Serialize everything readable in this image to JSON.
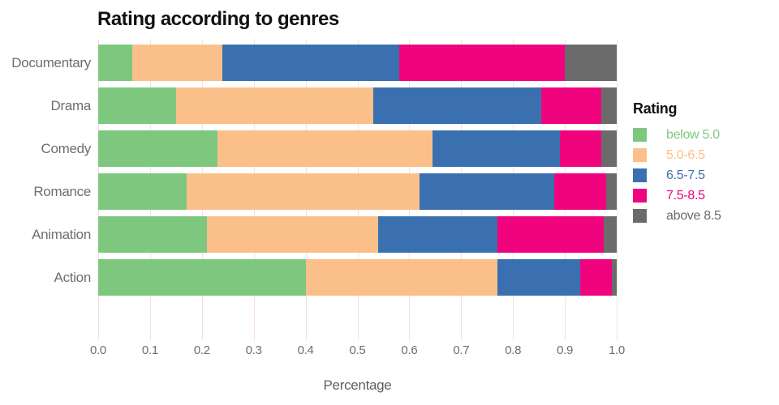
{
  "title": "Rating according to genres",
  "xlabel": "Percentage",
  "legend": {
    "title": "Rating",
    "entries": [
      {
        "label": "below 5.0",
        "color": "#7DC87E"
      },
      {
        "label": "5.0-6.5",
        "color": "#FBC08A"
      },
      {
        "label": "6.5-7.5",
        "color": "#3B70B0"
      },
      {
        "label": "7.5-8.5",
        "color": "#F0047E"
      },
      {
        "label": "above 8.5",
        "color": "#6B6B6B"
      }
    ]
  },
  "chart_data": {
    "type": "bar",
    "orientation": "horizontal",
    "stacked": true,
    "title": "Rating according to genres",
    "xlabel": "Percentage",
    "ylabel": "",
    "xlim": [
      0.0,
      1.0
    ],
    "xticks": [
      "0.0",
      "0.1",
      "0.2",
      "0.3",
      "0.4",
      "0.5",
      "0.6",
      "0.7",
      "0.8",
      "0.9",
      "1.0"
    ],
    "grid": true,
    "gridline_color": "#F6DFDF",
    "legend_position": "right",
    "legend_title": "Rating",
    "categories": [
      "Documentary",
      "Drama",
      "Comedy",
      "Romance",
      "Animation",
      "Action"
    ],
    "series": [
      {
        "name": "below 5.0",
        "color": "#7DC87E",
        "values": [
          0.065,
          0.15,
          0.23,
          0.17,
          0.21,
          0.4
        ]
      },
      {
        "name": "5.0-6.5",
        "color": "#FBC08A",
        "values": [
          0.175,
          0.38,
          0.415,
          0.45,
          0.33,
          0.37
        ]
      },
      {
        "name": "6.5-7.5",
        "color": "#3B70B0",
        "values": [
          0.34,
          0.325,
          0.245,
          0.26,
          0.23,
          0.16
        ]
      },
      {
        "name": "7.5-8.5",
        "color": "#F0047E",
        "values": [
          0.32,
          0.115,
          0.08,
          0.1,
          0.205,
          0.06
        ]
      },
      {
        "name": "above 8.5",
        "color": "#6B6B6B",
        "values": [
          0.1,
          0.03,
          0.03,
          0.02,
          0.025,
          0.01
        ]
      }
    ]
  }
}
